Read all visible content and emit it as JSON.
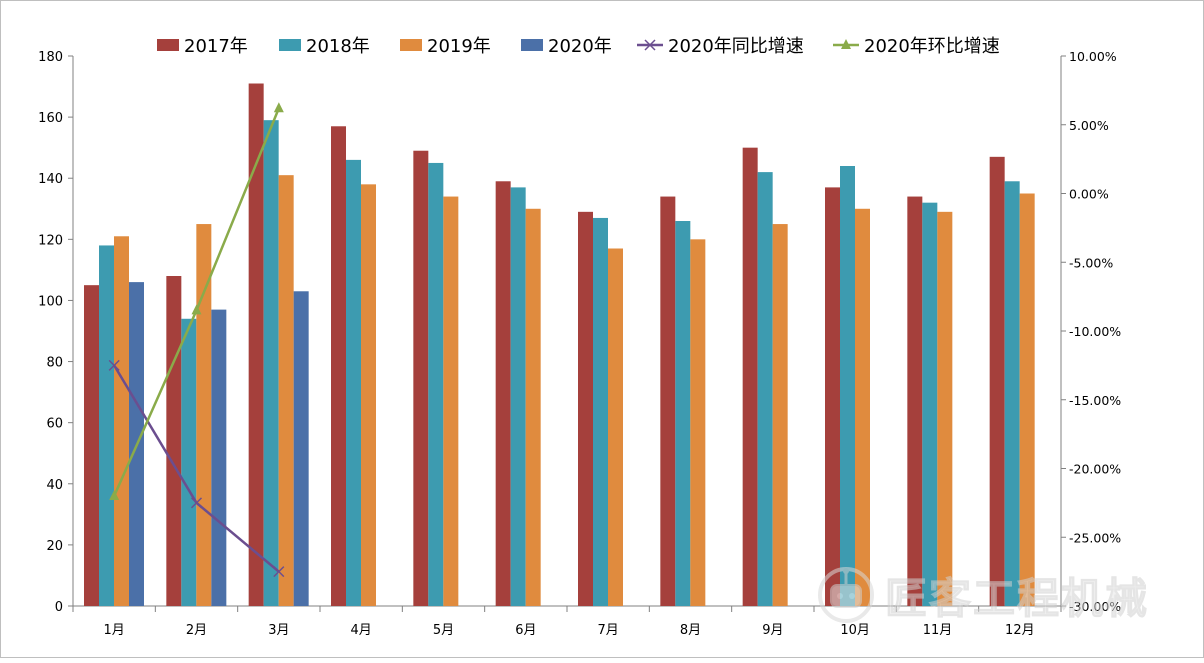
{
  "chart_data": {
    "type": "bar",
    "categories": [
      "1月",
      "2月",
      "3月",
      "4月",
      "5月",
      "6月",
      "7月",
      "8月",
      "9月",
      "10月",
      "11月",
      "12月"
    ],
    "series": [
      {
        "name": "2017年",
        "kind": "bar",
        "axis": "left",
        "color": "#a5403c",
        "values": [
          105,
          108,
          171,
          157,
          149,
          139,
          129,
          134,
          150,
          137,
          134,
          147
        ]
      },
      {
        "name": "2018年",
        "kind": "bar",
        "axis": "left",
        "color": "#3d9bb0",
        "values": [
          118,
          94,
          159,
          146,
          145,
          137,
          127,
          126,
          142,
          144,
          132,
          139
        ]
      },
      {
        "name": "2019年",
        "kind": "bar",
        "axis": "left",
        "color": "#e08b3e",
        "values": [
          121,
          125,
          141,
          138,
          134,
          130,
          117,
          120,
          125,
          130,
          129,
          135
        ]
      },
      {
        "name": "2020年",
        "kind": "bar",
        "axis": "left",
        "color": "#4b70a8",
        "values": [
          106,
          97,
          103,
          null,
          null,
          null,
          null,
          null,
          null,
          null,
          null,
          null
        ]
      },
      {
        "name": "2020年同比增速",
        "kind": "line",
        "axis": "right",
        "color": "#6b4e8f",
        "marker": "x",
        "values": [
          -12.5,
          -22.5,
          -27.5,
          null,
          null,
          null,
          null,
          null,
          null,
          null,
          null,
          null
        ]
      },
      {
        "name": "2020年环比增速",
        "kind": "line",
        "axis": "right",
        "color": "#8aab4a",
        "marker": "triangle",
        "values": [
          -22,
          -8.5,
          6.2,
          null,
          null,
          null,
          null,
          null,
          null,
          null,
          null,
          null
        ]
      }
    ],
    "ylim": [
      0,
      180
    ],
    "yticks": [
      "0",
      "20",
      "40",
      "60",
      "80",
      "100",
      "120",
      "140",
      "160",
      "180"
    ],
    "y2lim": [
      -30,
      10
    ],
    "y2ticks": [
      "-30.00%",
      "-25.00%",
      "-20.00%",
      "-15.00%",
      "-10.00%",
      "-5.00%",
      "0.00%",
      "5.00%",
      "10.00%"
    ],
    "legend_position": "top",
    "grid": false
  },
  "watermark": {
    "text": "匠客工程机械",
    "icon": "robot-logo-icon"
  }
}
